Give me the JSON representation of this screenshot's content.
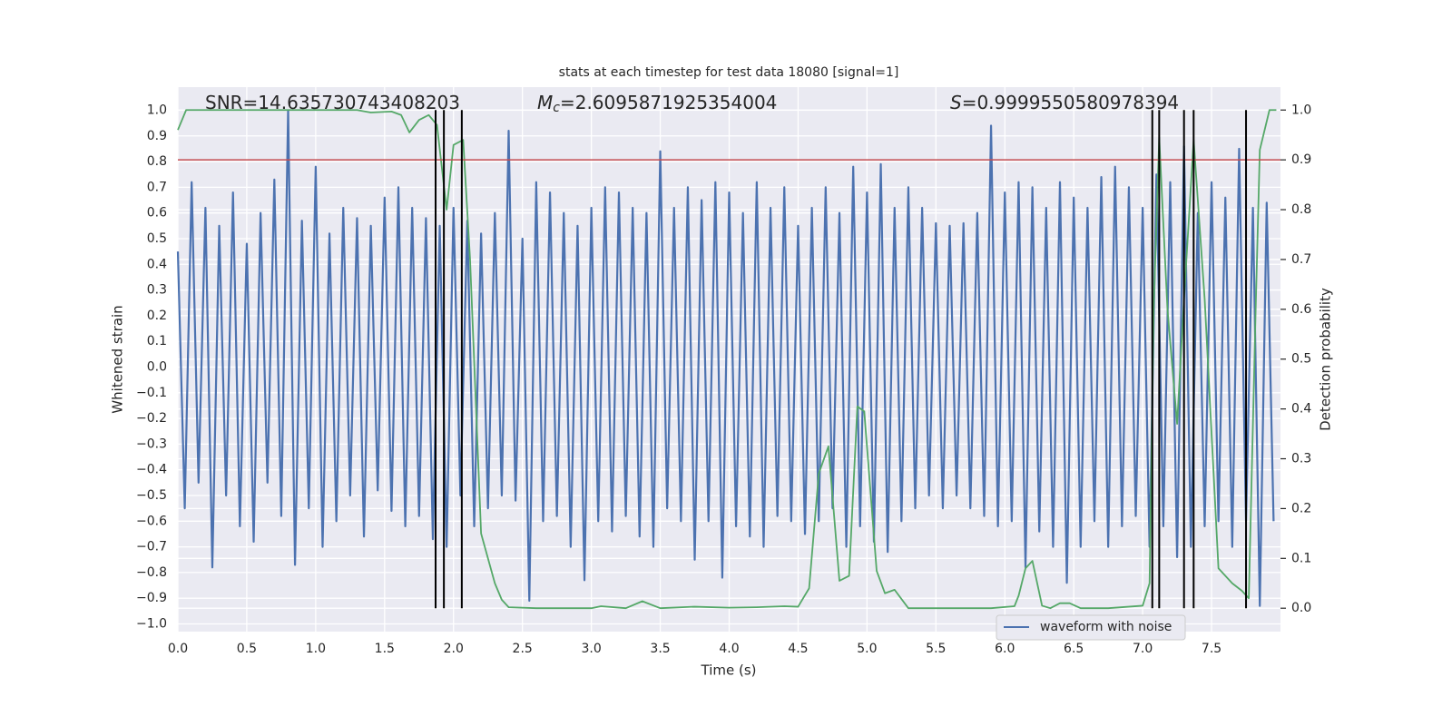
{
  "chart_data": {
    "type": "line",
    "title": "stats at each timestep for test data 18080 [signal=1]",
    "x_label": "Time (s)",
    "y_label": "Whitened strain",
    "y2_label": "Detection probability",
    "annotations": [
      {
        "parts": [
          "SNR=14.635730743408203"
        ]
      },
      {
        "parts": [
          "M",
          "c",
          "=2.6095871925354004"
        ]
      },
      {
        "parts": [
          "S",
          "=0.9999550580978394"
        ]
      }
    ],
    "xlim": [
      0,
      8
    ],
    "xticks": [
      {
        "value": 0,
        "label": "0.0"
      },
      {
        "value": 0.5,
        "label": "0.5"
      },
      {
        "value": 1,
        "label": "1.0"
      },
      {
        "value": 1.5,
        "label": "1.5"
      },
      {
        "value": 2,
        "label": "2.0"
      },
      {
        "value": 2.5,
        "label": "2.5"
      },
      {
        "value": 3,
        "label": "3.0"
      },
      {
        "value": 3.5,
        "label": "3.5"
      },
      {
        "value": 4,
        "label": "4.0"
      },
      {
        "value": 4.5,
        "label": "4.5"
      },
      {
        "value": 5,
        "label": "5.0"
      },
      {
        "value": 5.5,
        "label": "5.5"
      },
      {
        "value": 6,
        "label": "6.0"
      },
      {
        "value": 6.5,
        "label": "6.5"
      },
      {
        "value": 7,
        "label": "7.0"
      },
      {
        "value": 7.5,
        "label": "7.5"
      }
    ],
    "ylim": [
      -1.03,
      1.09
    ],
    "yticks": [
      {
        "value": -1,
        "label": "−1.0"
      },
      {
        "value": -0.9,
        "label": "−0.9"
      },
      {
        "value": -0.8,
        "label": "−0.8"
      },
      {
        "value": -0.7,
        "label": "−0.7"
      },
      {
        "value": -0.6,
        "label": "−0.6"
      },
      {
        "value": -0.5,
        "label": "−0.5"
      },
      {
        "value": -0.4,
        "label": "−0.4"
      },
      {
        "value": -0.3,
        "label": "−0.3"
      },
      {
        "value": -0.2,
        "label": "−0.2"
      },
      {
        "value": -0.1,
        "label": "−0.1"
      },
      {
        "value": 0,
        "label": "0.0"
      },
      {
        "value": 0.1,
        "label": "0.1"
      },
      {
        "value": 0.2,
        "label": "0.2"
      },
      {
        "value": 0.3,
        "label": "0.3"
      },
      {
        "value": 0.4,
        "label": "0.4"
      },
      {
        "value": 0.5,
        "label": "0.5"
      },
      {
        "value": 0.6,
        "label": "0.6"
      },
      {
        "value": 0.7,
        "label": "0.7"
      },
      {
        "value": 0.8,
        "label": "0.8"
      },
      {
        "value": 0.9,
        "label": "0.9"
      },
      {
        "value": 1,
        "label": "1.0"
      }
    ],
    "y2lim": [
      -0.047,
      1.046
    ],
    "y2ticks": [
      {
        "value": 0,
        "label": "0.0"
      },
      {
        "value": 0.1,
        "label": "0.1"
      },
      {
        "value": 0.2,
        "label": "0.2"
      },
      {
        "value": 0.3,
        "label": "0.3"
      },
      {
        "value": 0.4,
        "label": "0.4"
      },
      {
        "value": 0.5,
        "label": "0.5"
      },
      {
        "value": 0.6,
        "label": "0.6"
      },
      {
        "value": 0.7,
        "label": "0.7"
      },
      {
        "value": 0.8,
        "label": "0.8"
      },
      {
        "value": 0.9,
        "label": "0.9"
      },
      {
        "value": 1,
        "label": "1.0"
      }
    ],
    "grid": true,
    "legend_position": "lower right",
    "series": [
      {
        "name": "waveform with noise",
        "color": "#4c72b0",
        "axis": "y",
        "x": [
          0,
          0.05,
          0.1,
          0.15,
          0.2,
          0.25,
          0.3,
          0.35,
          0.4,
          0.45,
          0.5,
          0.55,
          0.6,
          0.65,
          0.7,
          0.75,
          0.8,
          0.85,
          0.9,
          0.95,
          1,
          1.05,
          1.1,
          1.15,
          1.2,
          1.25,
          1.3,
          1.35,
          1.4,
          1.45,
          1.5,
          1.55,
          1.6,
          1.65,
          1.7,
          1.75,
          1.8,
          1.85,
          1.9,
          1.95,
          2,
          2.05,
          2.1,
          2.15,
          2.2,
          2.25,
          2.3,
          2.35,
          2.4,
          2.45,
          2.5,
          2.55,
          2.6,
          2.65,
          2.7,
          2.75,
          2.8,
          2.85,
          2.9,
          2.95,
          3,
          3.05,
          3.1,
          3.15,
          3.2,
          3.25,
          3.3,
          3.35,
          3.4,
          3.45,
          3.5,
          3.55,
          3.6,
          3.65,
          3.7,
          3.75,
          3.8,
          3.85,
          3.9,
          3.95,
          4,
          4.05,
          4.1,
          4.15,
          4.2,
          4.25,
          4.3,
          4.35,
          4.4,
          4.45,
          4.5,
          4.55,
          4.6,
          4.65,
          4.7,
          4.75,
          4.8,
          4.85,
          4.9,
          4.95,
          5,
          5.05,
          5.1,
          5.15,
          5.2,
          5.25,
          5.3,
          5.35,
          5.4,
          5.45,
          5.5,
          5.55,
          5.6,
          5.65,
          5.7,
          5.75,
          5.8,
          5.85,
          5.9,
          5.95,
          6,
          6.05,
          6.1,
          6.15,
          6.2,
          6.25,
          6.3,
          6.35,
          6.4,
          6.45,
          6.5,
          6.55,
          6.6,
          6.65,
          6.7,
          6.75,
          6.8,
          6.85,
          6.9,
          6.95,
          7,
          7.05,
          7.1,
          7.15,
          7.2,
          7.25,
          7.3,
          7.35,
          7.4,
          7.45,
          7.5,
          7.55,
          7.6,
          7.65,
          7.7,
          7.75,
          7.8,
          7.85,
          7.9,
          7.95
        ],
        "values": [
          0.45,
          -0.55,
          0.72,
          -0.45,
          0.62,
          -0.78,
          0.55,
          -0.5,
          0.68,
          -0.62,
          0.48,
          -0.68,
          0.6,
          -0.45,
          0.73,
          -0.58,
          1.0,
          -0.77,
          0.57,
          -0.55,
          0.78,
          -0.7,
          0.52,
          -0.6,
          0.62,
          -0.5,
          0.58,
          -0.66,
          0.55,
          -0.48,
          0.66,
          -0.56,
          0.7,
          -0.62,
          0.62,
          -0.58,
          0.58,
          -0.67,
          0.55,
          -0.7,
          0.62,
          -0.5,
          0.57,
          -0.62,
          0.52,
          -0.55,
          0.6,
          -0.5,
          0.92,
          -0.52,
          0.5,
          -0.91,
          0.72,
          -0.6,
          0.68,
          -0.58,
          0.6,
          -0.7,
          0.55,
          -0.83,
          0.62,
          -0.6,
          0.7,
          -0.64,
          0.68,
          -0.58,
          0.62,
          -0.66,
          0.6,
          -0.7,
          0.84,
          -0.55,
          0.62,
          -0.6,
          0.7,
          -0.75,
          0.65,
          -0.6,
          0.72,
          -0.82,
          0.68,
          -0.62,
          0.6,
          -0.66,
          0.72,
          -0.7,
          0.62,
          -0.58,
          0.7,
          -0.6,
          0.55,
          -0.65,
          0.62,
          -0.6,
          0.7,
          -0.55,
          0.6,
          -0.7,
          0.78,
          -0.62,
          0.68,
          -0.68,
          0.79,
          -0.72,
          0.62,
          -0.6,
          0.7,
          -0.55,
          0.62,
          -0.5,
          0.56,
          -0.55,
          0.55,
          -0.5,
          0.56,
          -0.55,
          0.6,
          -0.58,
          0.94,
          -0.62,
          0.68,
          -0.6,
          0.72,
          -0.78,
          0.7,
          -0.64,
          0.62,
          -0.7,
          0.72,
          -0.84,
          0.66,
          -0.7,
          0.62,
          -0.6,
          0.74,
          -0.7,
          0.78,
          -0.62,
          0.7,
          -0.58,
          0.62,
          -0.7,
          0.75,
          -0.62,
          0.72,
          -0.74,
          0.86,
          -0.7,
          0.6,
          -0.62,
          0.72,
          -0.6,
          0.66,
          -0.7,
          0.85,
          -0.6,
          0.62,
          -0.93,
          0.64,
          -0.6
        ]
      },
      {
        "color": "#55a868",
        "axis": "y2",
        "x": [
          0,
          0.06,
          0.5,
          1,
          1.3,
          1.4,
          1.55,
          1.62,
          1.68,
          1.75,
          1.82,
          1.88,
          1.95,
          2,
          2.07,
          2.12,
          2.2,
          2.3,
          2.35,
          2.4,
          2.6,
          3,
          3.07,
          3.25,
          3.37,
          3.5,
          3.75,
          4,
          4.2,
          4.4,
          4.5,
          4.58,
          4.65,
          4.72,
          4.8,
          4.87,
          4.93,
          4.98,
          5.07,
          5.13,
          5.2,
          5.3,
          5.5,
          5.9,
          6.07,
          6.1,
          6.15,
          6.2,
          6.27,
          6.33,
          6.4,
          6.47,
          6.55,
          6.75,
          7,
          7.05,
          7.08,
          7.12,
          7.18,
          7.25,
          7.3,
          7.37,
          7.45,
          7.5,
          7.55,
          7.65,
          7.72,
          7.77,
          7.82,
          7.85,
          7.92,
          7.97
        ],
        "values": [
          0.96,
          1,
          1,
          1,
          1,
          0.995,
          0.997,
          0.99,
          0.955,
          0.98,
          0.99,
          0.97,
          0.8,
          0.93,
          0.94,
          0.7,
          0.15,
          0.05,
          0.017,
          0.002,
          0,
          0,
          0.004,
          0,
          0.014,
          0,
          0.003,
          0.001,
          0.002,
          0.004,
          0.003,
          0.04,
          0.27,
          0.325,
          0.055,
          0.065,
          0.405,
          0.395,
          0.075,
          0.03,
          0.037,
          0,
          0,
          0,
          0.004,
          0.025,
          0.08,
          0.095,
          0.005,
          0,
          0.01,
          0.01,
          0,
          0,
          0.005,
          0.05,
          0.6,
          0.945,
          0.6,
          0.37,
          0.62,
          0.94,
          0.62,
          0.35,
          0.08,
          0.05,
          0.035,
          0.02,
          0.6,
          0.92,
          1,
          1
        ]
      }
    ],
    "hline": {
      "value": 0.9,
      "axis": "y2",
      "color": "#c44e52"
    },
    "vlines": {
      "x": [
        1.87,
        1.93,
        2.06,
        7.07,
        7.12,
        7.3,
        7.37,
        7.75
      ],
      "ymin": 0,
      "ymax": 1,
      "axis": "y2",
      "color": "#000000"
    }
  }
}
